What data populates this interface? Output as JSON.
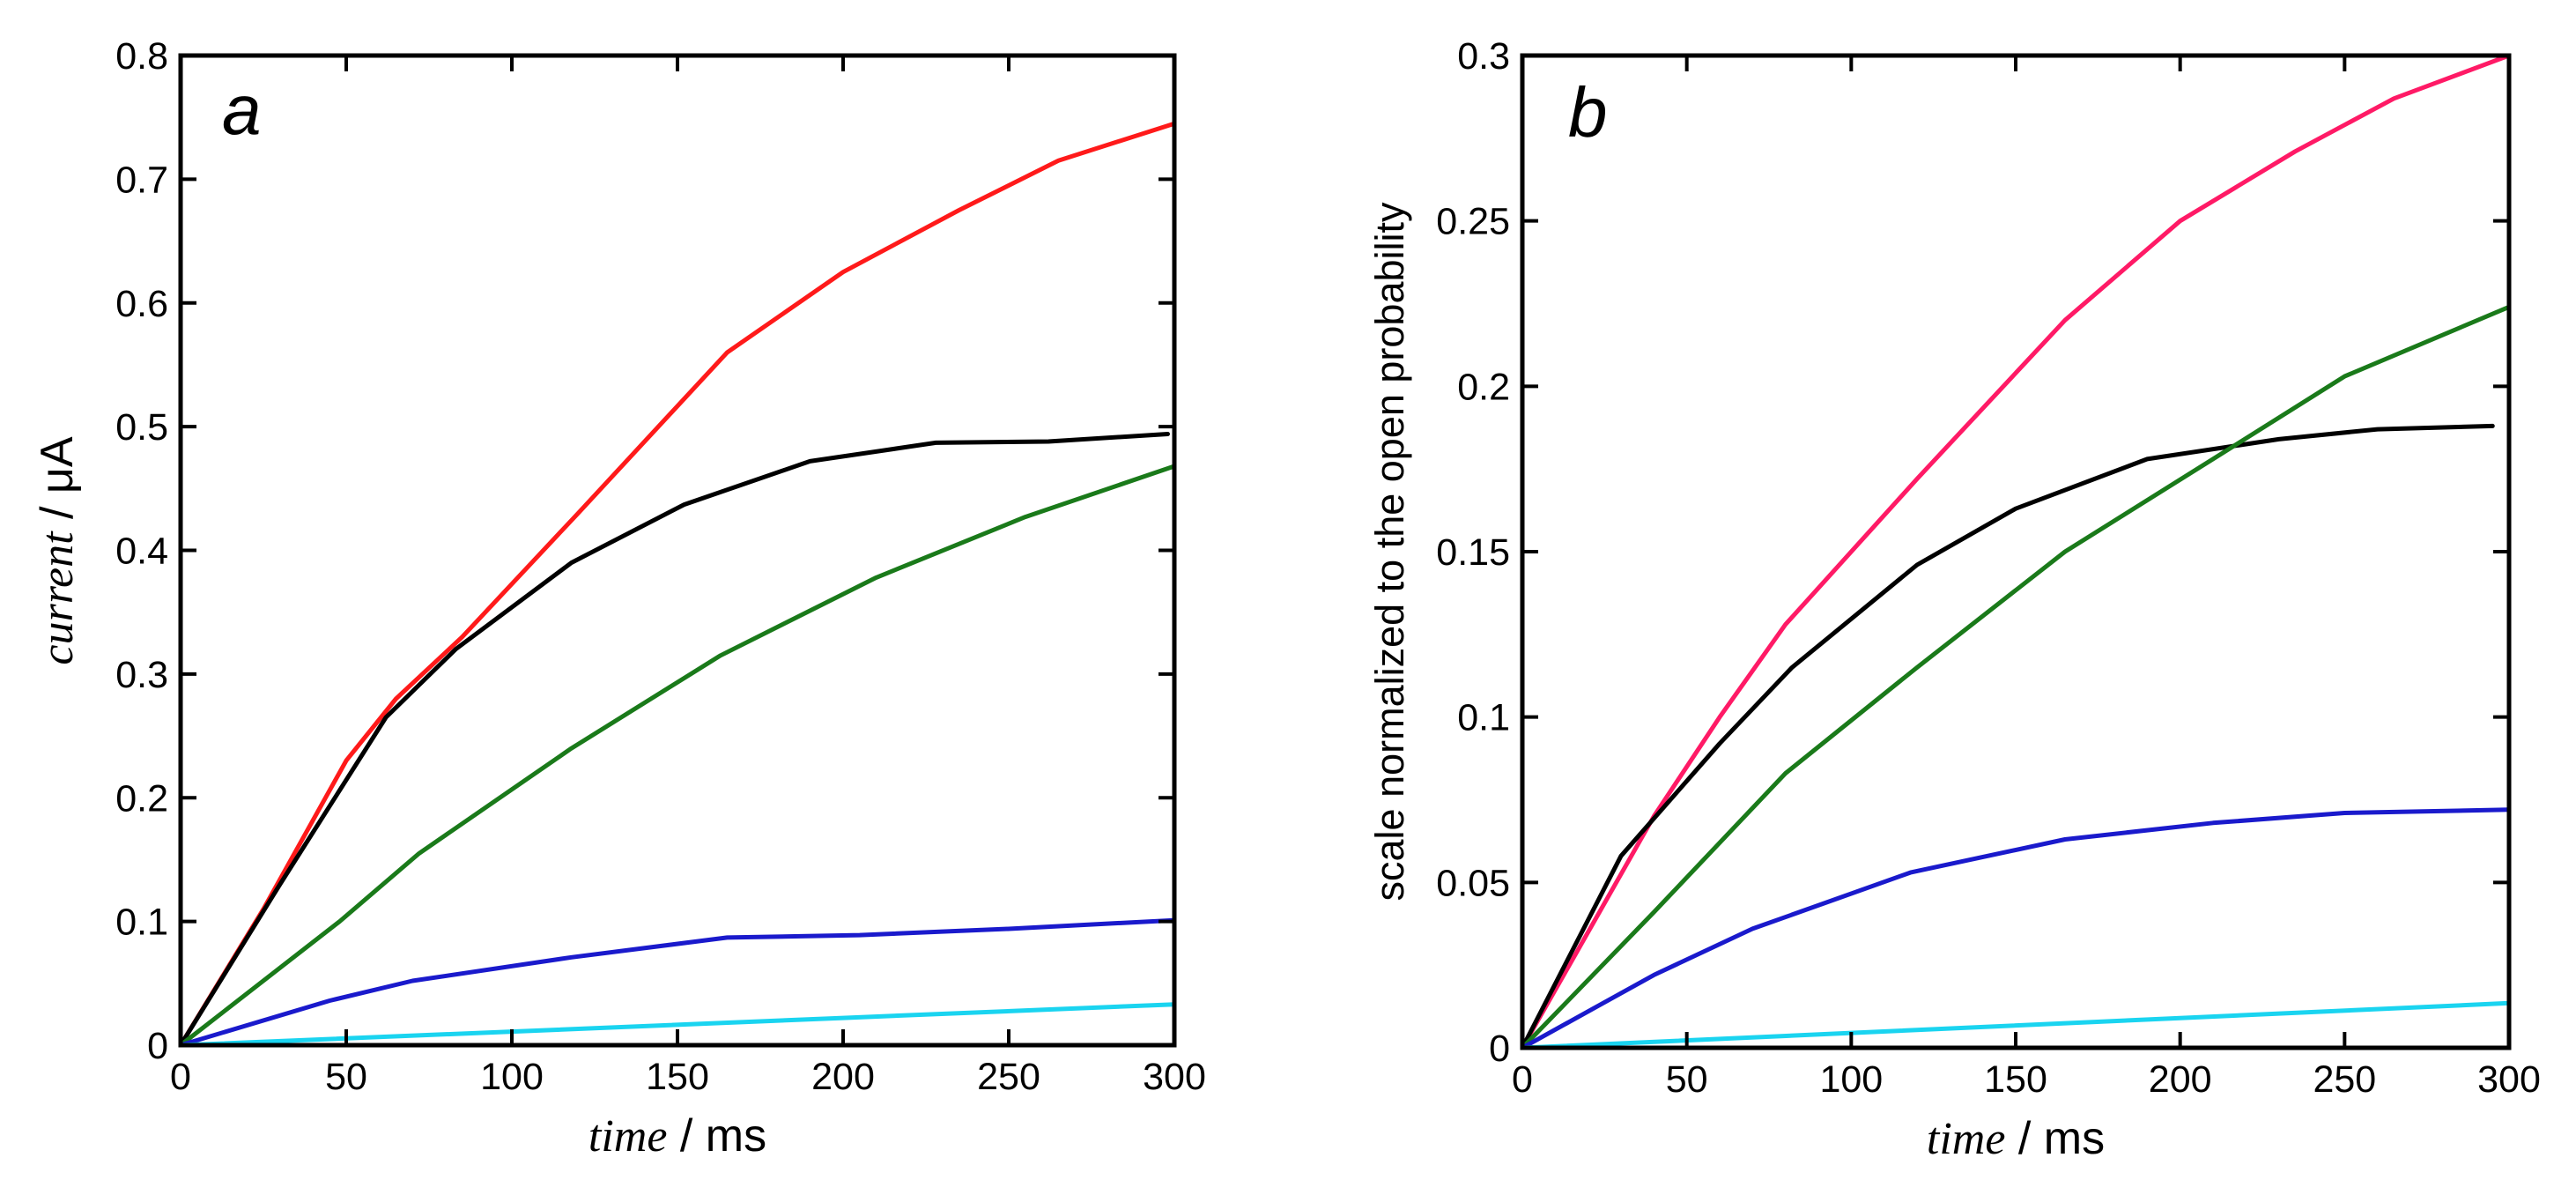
{
  "chart_data": [
    {
      "type": "line",
      "panel_label": "a",
      "title": "",
      "xlabel": {
        "italic": "time",
        "rest": " / ms"
      },
      "ylabel": {
        "italic": "current",
        "rest": " / μA"
      },
      "xlim": [
        0,
        300
      ],
      "ylim": [
        0,
        0.8
      ],
      "xticks": [
        0,
        50,
        100,
        150,
        200,
        250,
        300
      ],
      "yticks": [
        0,
        0.1,
        0.2,
        0.3,
        0.4,
        0.5,
        0.6,
        0.7,
        0.8
      ],
      "xtick_labels": [
        "0",
        "50",
        "100",
        "150",
        "200",
        "250",
        "300"
      ],
      "ytick_labels": [
        "0",
        "0.1",
        "0.2",
        "0.3",
        "0.4",
        "0.5",
        "0.6",
        "0.7",
        "0.8"
      ],
      "series": [
        {
          "name": "red",
          "color": "#ff1a1a",
          "x": [
            0,
            25,
            50,
            65,
            85,
            120,
            165,
            200,
            235,
            265,
            300
          ],
          "y": [
            0,
            0.11,
            0.23,
            0.28,
            0.33,
            0.43,
            0.56,
            0.625,
            0.675,
            0.715,
            0.745
          ]
        },
        {
          "name": "black",
          "color": "#000000",
          "x": [
            0,
            30,
            62,
            83,
            118,
            152,
            190,
            228,
            262,
            298
          ],
          "y": [
            0,
            0.13,
            0.265,
            0.32,
            0.39,
            0.437,
            0.472,
            0.487,
            0.488,
            0.494
          ]
        },
        {
          "name": "green",
          "color": "#1a7a1a",
          "x": [
            0,
            48,
            72,
            118,
            163,
            210,
            255,
            300
          ],
          "y": [
            0,
            0.1,
            0.155,
            0.24,
            0.315,
            0.378,
            0.427,
            0.468
          ]
        },
        {
          "name": "blue",
          "color": "#1a1acc",
          "x": [
            0,
            45,
            70,
            118,
            165,
            205,
            250,
            300
          ],
          "y": [
            0,
            0.036,
            0.052,
            0.071,
            0.087,
            0.089,
            0.094,
            0.101
          ]
        },
        {
          "name": "cyan",
          "color": "#1ad4f0",
          "x": [
            0,
            100,
            200,
            300
          ],
          "y": [
            0,
            0.011,
            0.022,
            0.033
          ]
        }
      ]
    },
    {
      "type": "line",
      "panel_label": "b",
      "title": "",
      "xlabel": {
        "italic": "time",
        "rest": " / ms"
      },
      "ylabel": {
        "text": "scale normalized to the open probability"
      },
      "xlim": [
        0,
        300
      ],
      "ylim": [
        0,
        0.3
      ],
      "xticks": [
        0,
        50,
        100,
        150,
        200,
        250,
        300
      ],
      "yticks": [
        0,
        0.05,
        0.1,
        0.15,
        0.2,
        0.25,
        0.3
      ],
      "xtick_labels": [
        "0",
        "50",
        "100",
        "150",
        "200",
        "250",
        "300"
      ],
      "ytick_labels": [
        "0",
        "0.05",
        "0.1",
        "0.15",
        "0.2",
        "0.25",
        "0.3"
      ],
      "series": [
        {
          "name": "magenta",
          "color": "#ff1a66",
          "x": [
            0,
            40,
            60,
            80,
            120,
            165,
            200,
            235,
            265,
            300
          ],
          "y": [
            0,
            0.07,
            0.1,
            0.128,
            0.172,
            0.22,
            0.25,
            0.271,
            0.287,
            0.3
          ]
        },
        {
          "name": "black",
          "color": "#000000",
          "x": [
            0,
            30,
            60,
            82,
            120,
            150,
            190,
            230,
            260,
            295
          ],
          "y": [
            0,
            0.058,
            0.092,
            0.115,
            0.146,
            0.163,
            0.178,
            0.184,
            0.187,
            0.188
          ]
        },
        {
          "name": "green",
          "color": "#1a7a1a",
          "x": [
            0,
            40,
            80,
            120,
            165,
            210,
            250,
            300
          ],
          "y": [
            0,
            0.041,
            0.083,
            0.115,
            0.15,
            0.178,
            0.203,
            0.224
          ]
        },
        {
          "name": "blue",
          "color": "#1a1acc",
          "x": [
            0,
            40,
            70,
            118,
            165,
            210,
            250,
            300
          ],
          "y": [
            0,
            0.022,
            0.036,
            0.053,
            0.063,
            0.068,
            0.071,
            0.072
          ]
        },
        {
          "name": "cyan",
          "color": "#1ad4f0",
          "x": [
            0,
            100,
            200,
            300
          ],
          "y": [
            0,
            0.0045,
            0.009,
            0.0135
          ]
        }
      ]
    }
  ]
}
